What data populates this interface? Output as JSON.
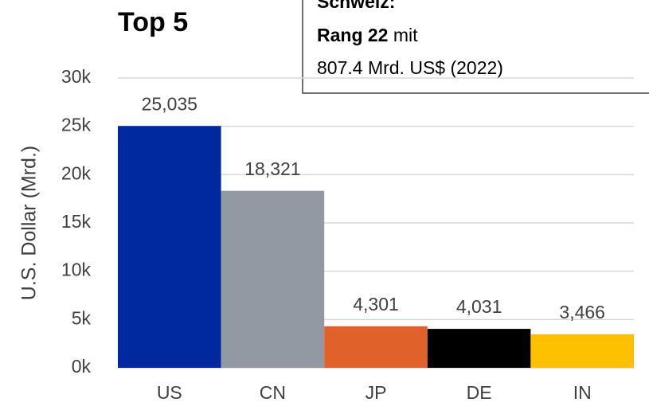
{
  "chart_data": {
    "type": "bar",
    "title": "Top 5",
    "y_label": "U.S. Dollar (Mrd.)",
    "categories": [
      "US",
      "CN",
      "JP",
      "DE",
      "IN"
    ],
    "values": [
      25035,
      18321,
      4301,
      4031,
      3466
    ],
    "value_labels": [
      "25,035",
      "18,321",
      "4,301",
      "4,031",
      "3,466"
    ],
    "colors": [
      "#00299f",
      "#9299a3",
      "#e0612a",
      "#000000",
      "#ffc000"
    ],
    "ylim": [
      0,
      30000
    ],
    "yticks": [
      {
        "value": 0,
        "label": "0k"
      },
      {
        "value": 5000,
        "label": "5k"
      },
      {
        "value": 10000,
        "label": "10k"
      },
      {
        "value": 15000,
        "label": "15k"
      },
      {
        "value": 20000,
        "label": "20k"
      },
      {
        "value": 25000,
        "label": "25k"
      },
      {
        "value": 30000,
        "label": "30k"
      }
    ],
    "grid": true,
    "annotation": {
      "heading": "Schweiz:",
      "rank": "Rang 22",
      "rank_suffix": "mit",
      "detail": "807.4 Mrd. US$ (2022)"
    }
  }
}
